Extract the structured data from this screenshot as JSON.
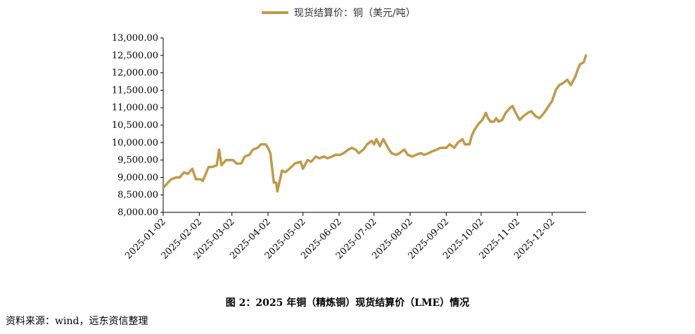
{
  "legend": {
    "label": "现货结算价：铜（美元/吨）",
    "color": "#C09A4A"
  },
  "caption": "图 2：2025 年铜（精炼铜）现货结算价（LME）情况",
  "source": "资料来源：wind，远东资信整理",
  "chart_data": {
    "type": "line",
    "title": "",
    "xlabel": "",
    "ylabel": "",
    "ylim": [
      8000,
      13000
    ],
    "yticks": [
      8000,
      8500,
      9000,
      9500,
      10000,
      10500,
      11000,
      11500,
      12000,
      12500,
      13000
    ],
    "ytick_labels": [
      "8,000.00",
      "8,500.00",
      "9,000.00",
      "9,500.00",
      "10,000.00",
      "10,500.00",
      "11,000.00",
      "11,500.00",
      "12,000.00",
      "12,500.00",
      "13,000.00"
    ],
    "xlim": [
      "2025-01-02",
      "2025-12-31"
    ],
    "xticks": [
      "2025-01-02",
      "2025-02-02",
      "2025-03-02",
      "2025-04-02",
      "2025-05-02",
      "2025-06-02",
      "2025-07-02",
      "2025-08-02",
      "2025-09-02",
      "2025-10-02",
      "2025-11-02",
      "2025-12-02"
    ],
    "legend_position": "top-center",
    "grid": false,
    "series": [
      {
        "name": "现货结算价：铜（美元/吨）",
        "color": "#C09A4A",
        "points": [
          [
            "2025-01-02",
            8700
          ],
          [
            "2025-01-06",
            8850
          ],
          [
            "2025-01-09",
            8950
          ],
          [
            "2025-01-13",
            9000
          ],
          [
            "2025-01-16",
            9000
          ],
          [
            "2025-01-20",
            9150
          ],
          [
            "2025-01-23",
            9100
          ],
          [
            "2025-01-27",
            9250
          ],
          [
            "2025-01-30",
            8950
          ],
          [
            "2025-02-03",
            8950
          ],
          [
            "2025-02-05",
            8900
          ],
          [
            "2025-02-10",
            9300
          ],
          [
            "2025-02-13",
            9300
          ],
          [
            "2025-02-17",
            9350
          ],
          [
            "2025-02-19",
            9800
          ],
          [
            "2025-02-21",
            9350
          ],
          [
            "2025-02-25",
            9500
          ],
          [
            "2025-03-03",
            9500
          ],
          [
            "2025-03-06",
            9400
          ],
          [
            "2025-03-10",
            9400
          ],
          [
            "2025-03-13",
            9600
          ],
          [
            "2025-03-17",
            9650
          ],
          [
            "2025-03-20",
            9800
          ],
          [
            "2025-03-24",
            9850
          ],
          [
            "2025-03-27",
            9950
          ],
          [
            "2025-03-31",
            9950
          ],
          [
            "2025-04-02",
            9850
          ],
          [
            "2025-04-04",
            9700
          ],
          [
            "2025-04-07",
            8850
          ],
          [
            "2025-04-09",
            8850
          ],
          [
            "2025-04-10",
            8600
          ],
          [
            "2025-04-14",
            9200
          ],
          [
            "2025-04-17",
            9150
          ],
          [
            "2025-04-22",
            9300
          ],
          [
            "2025-04-25",
            9400
          ],
          [
            "2025-04-30",
            9450
          ],
          [
            "2025-05-02",
            9250
          ],
          [
            "2025-05-06",
            9500
          ],
          [
            "2025-05-09",
            9450
          ],
          [
            "2025-05-13",
            9600
          ],
          [
            "2025-05-16",
            9550
          ],
          [
            "2025-05-20",
            9600
          ],
          [
            "2025-05-23",
            9550
          ],
          [
            "2025-05-27",
            9600
          ],
          [
            "2025-05-30",
            9650
          ],
          [
            "2025-06-03",
            9650
          ],
          [
            "2025-06-06",
            9700
          ],
          [
            "2025-06-10",
            9800
          ],
          [
            "2025-06-13",
            9850
          ],
          [
            "2025-06-16",
            9800
          ],
          [
            "2025-06-19",
            9700
          ],
          [
            "2025-06-23",
            9800
          ],
          [
            "2025-06-26",
            9950
          ],
          [
            "2025-06-30",
            10050
          ],
          [
            "2025-07-02",
            9950
          ],
          [
            "2025-07-04",
            10100
          ],
          [
            "2025-07-07",
            9900
          ],
          [
            "2025-07-10",
            10100
          ],
          [
            "2025-07-14",
            9850
          ],
          [
            "2025-07-17",
            9700
          ],
          [
            "2025-07-21",
            9650
          ],
          [
            "2025-07-24",
            9700
          ],
          [
            "2025-07-28",
            9800
          ],
          [
            "2025-07-31",
            9650
          ],
          [
            "2025-08-04",
            9600
          ],
          [
            "2025-08-07",
            9650
          ],
          [
            "2025-08-11",
            9700
          ],
          [
            "2025-08-14",
            9650
          ],
          [
            "2025-08-18",
            9700
          ],
          [
            "2025-08-21",
            9750
          ],
          [
            "2025-08-25",
            9800
          ],
          [
            "2025-08-28",
            9850
          ],
          [
            "2025-09-02",
            9850
          ],
          [
            "2025-09-05",
            9950
          ],
          [
            "2025-09-09",
            9850
          ],
          [
            "2025-09-12",
            10000
          ],
          [
            "2025-09-16",
            10100
          ],
          [
            "2025-09-18",
            9950
          ],
          [
            "2025-09-22",
            9950
          ],
          [
            "2025-09-24",
            10200
          ],
          [
            "2025-09-26",
            10350
          ],
          [
            "2025-09-30",
            10550
          ],
          [
            "2025-10-03",
            10650
          ],
          [
            "2025-10-06",
            10850
          ],
          [
            "2025-10-08",
            10700
          ],
          [
            "2025-10-10",
            10600
          ],
          [
            "2025-10-13",
            10600
          ],
          [
            "2025-10-15",
            10700
          ],
          [
            "2025-10-17",
            10600
          ],
          [
            "2025-10-20",
            10650
          ],
          [
            "2025-10-23",
            10850
          ],
          [
            "2025-10-27",
            11000
          ],
          [
            "2025-10-29",
            11050
          ],
          [
            "2025-10-31",
            10900
          ],
          [
            "2025-11-04",
            10650
          ],
          [
            "2025-11-07",
            10750
          ],
          [
            "2025-11-11",
            10850
          ],
          [
            "2025-11-14",
            10900
          ],
          [
            "2025-11-18",
            10750
          ],
          [
            "2025-11-21",
            10700
          ],
          [
            "2025-11-25",
            10850
          ],
          [
            "2025-11-28",
            11000
          ],
          [
            "2025-12-02",
            11200
          ],
          [
            "2025-12-05",
            11500
          ],
          [
            "2025-12-08",
            11650
          ],
          [
            "2025-12-11",
            11700
          ],
          [
            "2025-12-15",
            11800
          ],
          [
            "2025-12-18",
            11650
          ],
          [
            "2025-12-22",
            11900
          ],
          [
            "2025-12-24",
            12100
          ],
          [
            "2025-12-26",
            12250
          ],
          [
            "2025-12-29",
            12300
          ],
          [
            "2025-12-31",
            12500
          ]
        ]
      }
    ]
  }
}
